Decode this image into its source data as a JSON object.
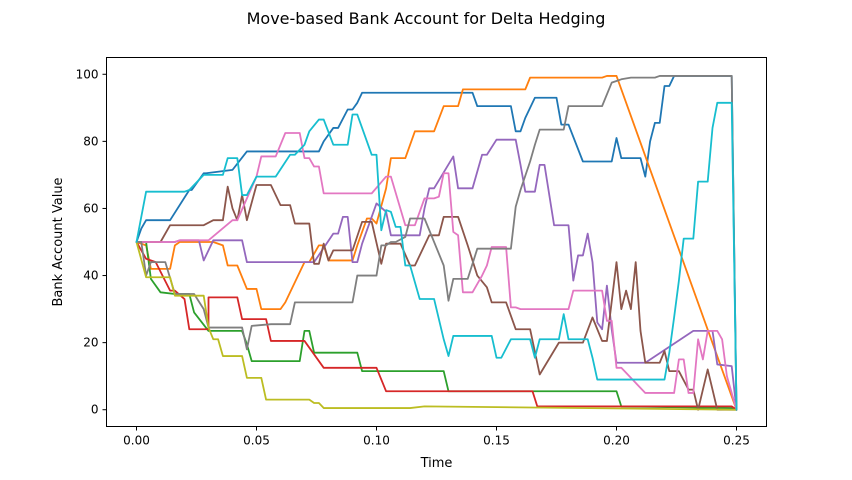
{
  "chart_data": {
    "type": "line",
    "title": "Move-based Bank Account for Delta Hedging",
    "xlabel": "Time",
    "ylabel": "Bank Account Value",
    "xlim": [
      -0.0125,
      0.2625
    ],
    "ylim": [
      -5,
      105
    ],
    "xticks": [
      0.0,
      0.05,
      0.1,
      0.15,
      0.2,
      0.25
    ],
    "xtick_labels": [
      "0.00",
      "0.05",
      "0.10",
      "0.15",
      "0.20",
      "0.25"
    ],
    "yticks": [
      0,
      20,
      40,
      60,
      80,
      100
    ],
    "ytick_labels": [
      "0",
      "20",
      "40",
      "60",
      "80",
      "100"
    ],
    "grid": false,
    "series": [
      {
        "color": "#1f77b4",
        "x": [
          0,
          0.002,
          0.004,
          0.014,
          0.022,
          0.023,
          0.028,
          0.029,
          0.04,
          0.046,
          0.047,
          0.076,
          0.078,
          0.082,
          0.084,
          0.088,
          0.09,
          0.092,
          0.094,
          0.098,
          0.104,
          0.14,
          0.142,
          0.156,
          0.158,
          0.16,
          0.162,
          0.166,
          0.168,
          0.175,
          0.177,
          0.18,
          0.186,
          0.19,
          0.198,
          0.2,
          0.202,
          0.21,
          0.212,
          0.214,
          0.216,
          0.218,
          0.22,
          0.222,
          0.224,
          0.226,
          0.228,
          0.248,
          0.25
        ],
        "y": [
          50,
          54,
          56.5,
          56.5,
          65.5,
          65.5,
          70.5,
          70.5,
          71.5,
          77,
          77,
          77,
          80,
          84,
          84,
          89.5,
          89.5,
          91.5,
          94.5,
          94.5,
          94.5,
          94.5,
          90.5,
          90.5,
          83,
          83,
          87,
          93,
          93,
          93,
          85,
          85,
          74,
          74,
          74,
          81,
          75,
          75,
          69.5,
          80,
          85.5,
          85.5,
          96.5,
          96.5,
          99.5,
          99.5,
          99.5,
          99.5,
          0
        ]
      },
      {
        "color": "#ff7f0e",
        "x": [
          0,
          0.004,
          0.006,
          0.014,
          0.016,
          0.018,
          0.03,
          0.032,
          0.036,
          0.038,
          0.042,
          0.046,
          0.05,
          0.052,
          0.06,
          0.062,
          0.07,
          0.072,
          0.076,
          0.078,
          0.08,
          0.09,
          0.092,
          0.096,
          0.098,
          0.1,
          0.104,
          0.106,
          0.112,
          0.116,
          0.124,
          0.128,
          0.134,
          0.136,
          0.15,
          0.162,
          0.164,
          0.194,
          0.196,
          0.2,
          0.25
        ],
        "y": [
          50,
          49,
          42,
          42,
          49,
          50,
          50,
          50,
          49,
          43,
          43,
          36,
          36,
          30,
          30,
          32,
          44,
          44,
          49,
          49,
          44.5,
          44.5,
          49,
          57,
          57,
          55.5,
          66,
          75,
          75,
          83,
          83,
          90.5,
          90.5,
          95.5,
          95.5,
          95.5,
          99,
          99,
          99.5,
          99.5,
          0
        ]
      },
      {
        "color": "#2ca02c",
        "x": [
          0,
          0.004,
          0.006,
          0.01,
          0.016,
          0.022,
          0.024,
          0.03,
          0.04,
          0.044,
          0.046,
          0.048,
          0.06,
          0.068,
          0.07,
          0.072,
          0.074,
          0.092,
          0.094,
          0.128,
          0.13,
          0.2,
          0.202,
          0.248,
          0.25
        ],
        "y": [
          50,
          50,
          39,
          35,
          34.5,
          34.5,
          29,
          23.5,
          23.5,
          23.5,
          19.5,
          14.5,
          14.5,
          14.5,
          23.5,
          23.5,
          17,
          17,
          11.5,
          11.5,
          5.5,
          5.5,
          1,
          0.5,
          0
        ]
      },
      {
        "color": "#d62728",
        "x": [
          0,
          0.004,
          0.008,
          0.014,
          0.016,
          0.02,
          0.022,
          0.024,
          0.03,
          0.03,
          0.04,
          0.042,
          0.044,
          0.054,
          0.056,
          0.068,
          0.07,
          0.078,
          0.098,
          0.1,
          0.104,
          0.12,
          0.165,
          0.167,
          0.248,
          0.25
        ],
        "y": [
          50,
          45,
          44,
          35.5,
          35.5,
          33,
          24,
          24,
          24,
          33.5,
          33.5,
          33.5,
          27,
          27,
          20.5,
          20.5,
          20.5,
          12.5,
          12.5,
          12.5,
          5.5,
          5.5,
          5.5,
          1,
          1,
          0
        ]
      },
      {
        "color": "#9467bd",
        "x": [
          0,
          0.004,
          0.006,
          0.016,
          0.018,
          0.026,
          0.028,
          0.032,
          0.044,
          0.046,
          0.072,
          0.074,
          0.082,
          0.084,
          0.086,
          0.088,
          0.09,
          0.092,
          0.094,
          0.1,
          0.104,
          0.106,
          0.112,
          0.116,
          0.118,
          0.12,
          0.122,
          0.124,
          0.132,
          0.134,
          0.136,
          0.14,
          0.144,
          0.146,
          0.15,
          0.158,
          0.16,
          0.162,
          0.166,
          0.168,
          0.17,
          0.174,
          0.176,
          0.18,
          0.182,
          0.184,
          0.186,
          0.188,
          0.19,
          0.192,
          0.194,
          0.196,
          0.198,
          0.2,
          0.212,
          0.232,
          0.24,
          0.242,
          0.248,
          0.25
        ],
        "y": [
          50,
          50,
          50,
          50,
          50.5,
          50.5,
          44.5,
          50.5,
          50.5,
          44,
          44,
          44,
          52.5,
          52.5,
          57.5,
          57.5,
          44,
          44,
          49.5,
          61.5,
          59,
          52,
          52,
          52,
          52,
          60,
          66,
          66,
          75.5,
          66,
          66,
          66,
          76,
          76,
          80.5,
          80.5,
          73,
          65,
          65,
          73,
          73,
          55,
          55,
          55,
          38.5,
          46,
          46,
          52.5,
          44,
          26,
          24,
          37,
          24,
          14,
          14,
          23.5,
          23.5,
          13.5,
          13,
          0
        ]
      },
      {
        "color": "#8c564b",
        "x": [
          0,
          0.004,
          0.006,
          0.01,
          0.014,
          0.016,
          0.028,
          0.032,
          0.036,
          0.038,
          0.04,
          0.042,
          0.044,
          0.046,
          0.05,
          0.052,
          0.054,
          0.056,
          0.06,
          0.062,
          0.064,
          0.066,
          0.068,
          0.07,
          0.072,
          0.074,
          0.076,
          0.078,
          0.08,
          0.082,
          0.084,
          0.088,
          0.09,
          0.094,
          0.098,
          0.102,
          0.104,
          0.11,
          0.114,
          0.116,
          0.122,
          0.126,
          0.128,
          0.134,
          0.138,
          0.142,
          0.146,
          0.148,
          0.154,
          0.158,
          0.164,
          0.168,
          0.176,
          0.18,
          0.186,
          0.19,
          0.194,
          0.196,
          0.2,
          0.202,
          0.204,
          0.206,
          0.208,
          0.21,
          0.212,
          0.214,
          0.218,
          0.22,
          0.222,
          0.226,
          0.23,
          0.232,
          0.234,
          0.236,
          0.238,
          0.24,
          0.242,
          0.244,
          0.246,
          0.25
        ],
        "y": [
          50,
          50,
          50,
          50,
          55,
          55,
          55,
          56.5,
          56.5,
          66.5,
          60,
          56.5,
          64,
          56.5,
          67,
          67,
          67,
          67,
          61,
          61,
          61,
          55.5,
          55.5,
          55.5,
          55.5,
          43.5,
          43.5,
          49.5,
          44.5,
          47.5,
          47.5,
          47.5,
          47.5,
          56,
          56,
          43.5,
          49.5,
          49.5,
          43,
          43,
          52,
          52,
          57.5,
          57.5,
          49,
          40,
          36.5,
          32,
          32,
          24,
          24,
          10.5,
          20,
          20,
          20,
          27.5,
          20.5,
          20.5,
          44,
          30,
          35.5,
          30,
          44,
          23.5,
          14,
          14,
          14,
          17.5,
          11.5,
          11.5,
          6,
          6,
          0,
          6,
          12,
          6,
          0,
          0,
          0,
          0
        ]
      },
      {
        "color": "#e377c2",
        "x": [
          0,
          0.004,
          0.016,
          0.018,
          0.028,
          0.03,
          0.04,
          0.042,
          0.05,
          0.052,
          0.056,
          0.058,
          0.062,
          0.066,
          0.068,
          0.07,
          0.072,
          0.074,
          0.076,
          0.078,
          0.096,
          0.098,
          0.104,
          0.106,
          0.112,
          0.116,
          0.12,
          0.122,
          0.124,
          0.126,
          0.128,
          0.13,
          0.132,
          0.134,
          0.136,
          0.138,
          0.14,
          0.144,
          0.146,
          0.148,
          0.15,
          0.152,
          0.154,
          0.156,
          0.158,
          0.16,
          0.162,
          0.164,
          0.166,
          0.168,
          0.18,
          0.182,
          0.194,
          0.196,
          0.198,
          0.2,
          0.202,
          0.212,
          0.22,
          0.224,
          0.226,
          0.228,
          0.23,
          0.232,
          0.234,
          0.236,
          0.238,
          0.24,
          0.242,
          0.244,
          0.246,
          0.25
        ],
        "y": [
          50,
          50,
          50,
          50.5,
          50.5,
          50.5,
          56.5,
          56.5,
          69.5,
          75.5,
          75.5,
          75.5,
          82.5,
          82.5,
          82.5,
          75,
          75,
          72.5,
          72.5,
          64.5,
          64.5,
          64.5,
          69.5,
          69.5,
          55,
          55,
          63,
          63,
          63,
          63.5,
          70.5,
          70.5,
          53,
          52,
          35,
          35,
          35,
          40,
          43,
          48.5,
          48.5,
          48.5,
          48.5,
          30.5,
          30.5,
          30,
          30,
          30,
          30,
          30,
          30,
          35.5,
          35.5,
          26.5,
          26.5,
          12.5,
          12.5,
          5,
          5,
          5,
          15,
          15,
          5,
          5,
          21,
          15,
          23.5,
          23.5,
          23.5,
          21,
          10,
          0
        ]
      },
      {
        "color": "#7f7f7f",
        "x": [
          0,
          0.002,
          0.004,
          0.006,
          0.01,
          0.012,
          0.016,
          0.018,
          0.024,
          0.028,
          0.03,
          0.04,
          0.044,
          0.046,
          0.048,
          0.056,
          0.058,
          0.062,
          0.064,
          0.066,
          0.09,
          0.092,
          0.1,
          0.102,
          0.104,
          0.106,
          0.108,
          0.112,
          0.114,
          0.116,
          0.12,
          0.128,
          0.13,
          0.132,
          0.136,
          0.138,
          0.142,
          0.146,
          0.15,
          0.154,
          0.156,
          0.158,
          0.16,
          0.164,
          0.166,
          0.168,
          0.172,
          0.174,
          0.178,
          0.18,
          0.184,
          0.192,
          0.194,
          0.198,
          0.2,
          0.202,
          0.206,
          0.212,
          0.216,
          0.218,
          0.222,
          0.224,
          0.226,
          0.23,
          0.236,
          0.248,
          0.25
        ],
        "y": [
          50,
          50,
          40,
          44,
          44,
          44,
          34.5,
          34.5,
          34.5,
          30,
          24.5,
          24.5,
          24.5,
          18,
          25,
          25.5,
          25.5,
          25.5,
          25.5,
          32,
          32,
          40,
          40,
          49,
          49,
          50,
          50,
          51.5,
          57,
          57,
          57,
          43,
          32.5,
          39,
          39,
          39,
          48,
          48,
          48,
          48,
          48,
          60.5,
          65.5,
          74,
          79,
          83.5,
          83.5,
          83.5,
          83.5,
          90.5,
          90.5,
          90.5,
          90.5,
          97.5,
          98,
          98.5,
          99,
          99,
          99,
          99.5,
          99.5,
          99.5,
          99.5,
          99.5,
          99.5,
          99.5,
          0
        ]
      },
      {
        "color": "#bcbd22",
        "x": [
          0,
          0.004,
          0.01,
          0.012,
          0.014,
          0.016,
          0.018,
          0.022,
          0.028,
          0.03,
          0.032,
          0.034,
          0.036,
          0.04,
          0.042,
          0.044,
          0.046,
          0.05,
          0.052,
          0.054,
          0.056,
          0.072,
          0.074,
          0.076,
          0.078,
          0.09,
          0.1,
          0.11,
          0.114,
          0.12,
          0.25
        ],
        "y": [
          50,
          39.5,
          39.5,
          39.5,
          39.5,
          34,
          34,
          34,
          34,
          24.5,
          21,
          21,
          16,
          16,
          16,
          16,
          9.5,
          9.5,
          9.5,
          3,
          3,
          3,
          2,
          2,
          0.5,
          0.5,
          0.5,
          0.5,
          0.5,
          1,
          0
        ]
      },
      {
        "color": "#17becf",
        "x": [
          0,
          0.002,
          0.004,
          0.02,
          0.022,
          0.028,
          0.03,
          0.036,
          0.038,
          0.042,
          0.044,
          0.046,
          0.05,
          0.056,
          0.058,
          0.064,
          0.066,
          0.07,
          0.072,
          0.076,
          0.078,
          0.082,
          0.084,
          0.088,
          0.09,
          0.092,
          0.094,
          0.098,
          0.1,
          0.102,
          0.104,
          0.106,
          0.108,
          0.11,
          0.112,
          0.114,
          0.116,
          0.118,
          0.12,
          0.124,
          0.128,
          0.13,
          0.132,
          0.138,
          0.144,
          0.148,
          0.15,
          0.152,
          0.156,
          0.158,
          0.162,
          0.164,
          0.166,
          0.168,
          0.17,
          0.174,
          0.176,
          0.178,
          0.18,
          0.184,
          0.188,
          0.19,
          0.192,
          0.198,
          0.21,
          0.212,
          0.22,
          0.222,
          0.224,
          0.226,
          0.228,
          0.23,
          0.232,
          0.234,
          0.236,
          0.238,
          0.24,
          0.242,
          0.244,
          0.246,
          0.248,
          0.25
        ],
        "y": [
          50,
          57.5,
          65,
          65,
          65.5,
          70,
          70,
          70,
          75,
          75,
          64,
          64,
          69.5,
          69.5,
          69.5,
          76,
          76,
          79,
          83,
          86.5,
          86.5,
          79,
          79,
          79,
          88,
          88,
          84,
          76,
          76,
          53.5,
          59.5,
          59,
          54.5,
          54.5,
          43,
          43,
          38,
          33,
          33,
          33,
          21,
          16,
          22,
          22,
          22,
          22,
          15.5,
          15.5,
          21,
          21,
          21,
          21,
          15.5,
          21,
          21,
          21,
          21,
          28.5,
          21,
          21,
          21,
          15.5,
          9,
          9,
          9,
          9,
          9,
          17,
          27.5,
          38.5,
          51,
          51,
          51,
          68,
          68,
          68,
          84,
          91.5,
          91.5,
          91.5,
          91.5,
          0
        ]
      }
    ]
  }
}
